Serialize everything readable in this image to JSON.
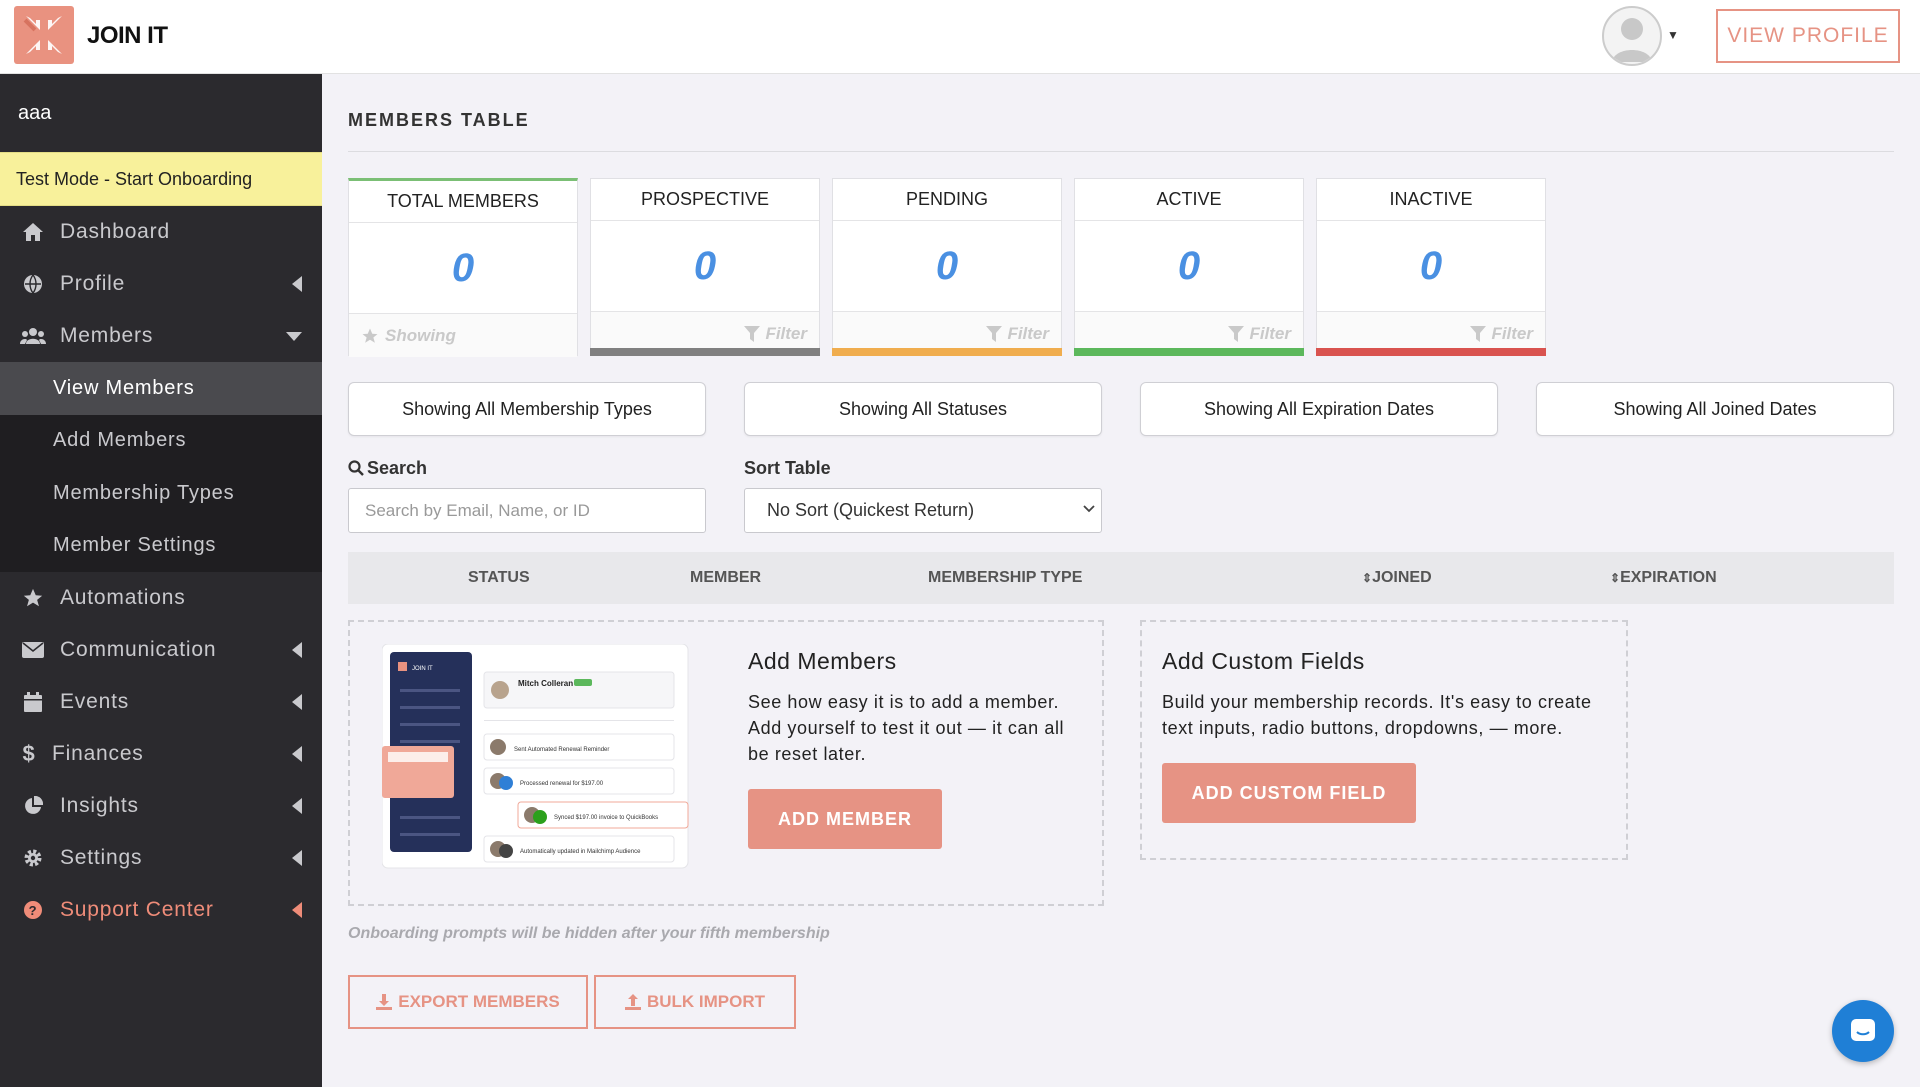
{
  "header": {
    "app_name": "JOIN IT",
    "view_profile_label": "VIEW PROFILE"
  },
  "sidebar": {
    "org_name": "aaa",
    "test_mode_label": "Test Mode - Start Onboarding",
    "items": [
      {
        "label": "Dashboard",
        "icon": "home-icon"
      },
      {
        "label": "Profile",
        "icon": "globe-icon"
      },
      {
        "label": "Members",
        "icon": "users-icon"
      },
      {
        "label": "Automations",
        "icon": "star-icon"
      },
      {
        "label": "Communication",
        "icon": "envelope-icon"
      },
      {
        "label": "Events",
        "icon": "calendar-icon"
      },
      {
        "label": "Finances",
        "icon": "dollar-icon"
      },
      {
        "label": "Insights",
        "icon": "pie-chart-icon"
      },
      {
        "label": "Settings",
        "icon": "gear-icon"
      },
      {
        "label": "Support Center",
        "icon": "question-icon"
      }
    ],
    "member_subitems": [
      "View Members",
      "Add Members",
      "Membership Types",
      "Member Settings"
    ]
  },
  "main": {
    "title": "MEMBERS TABLE",
    "stats": [
      {
        "label": "TOTAL MEMBERS",
        "value": "0",
        "footer": "Showing",
        "color": ""
      },
      {
        "label": "PROSPECTIVE",
        "value": "0",
        "footer": "Filter",
        "color": "#808080"
      },
      {
        "label": "PENDING",
        "value": "0",
        "footer": "Filter",
        "color": "#f0ad4e"
      },
      {
        "label": "ACTIVE",
        "value": "0",
        "footer": "Filter",
        "color": "#5cb85c"
      },
      {
        "label": "INACTIVE",
        "value": "0",
        "footer": "Filter",
        "color": "#d9534f"
      }
    ],
    "filters": [
      "Showing All Membership Types",
      "Showing All Statuses",
      "Showing All Expiration Dates",
      "Showing All Joined Dates"
    ],
    "search": {
      "label": "Search",
      "placeholder": "Search by Email, Name, or ID"
    },
    "sort": {
      "label": "Sort Table",
      "value": "No Sort (Quickest Return)"
    },
    "table_headers": [
      "STATUS",
      "MEMBER",
      "MEMBERSHIP TYPE",
      "JOINED",
      "EXPIRATION"
    ],
    "promo_add": {
      "title": "Add Members",
      "text": "See how easy it is to add a member. Add yourself to test it out — it can all be reset later.",
      "button": "ADD MEMBER",
      "preview": {
        "logo": "JOIN IT",
        "member_name": "Mitch Colleran",
        "events": [
          "Sent Automated Renewal Reminder",
          "Processed renewal for $197.00",
          "Synced $197.00 invoice to QuickBooks",
          "Automatically updated in Mailchimp Audience"
        ]
      }
    },
    "promo_custom": {
      "title": "Add Custom Fields",
      "text": "Build your membership records. It's easy to create text inputs, radio buttons, dropdowns, — more.",
      "button": "ADD CUSTOM FIELD"
    },
    "onboarding_note": "Onboarding prompts will be hidden after your fifth membership",
    "export_label": "EXPORT MEMBERS",
    "import_label": "BULK IMPORT"
  },
  "colors": {
    "accent": "#e69384",
    "number_blue": "#4a90e2",
    "sidebar_bg": "#2b2a2e"
  }
}
